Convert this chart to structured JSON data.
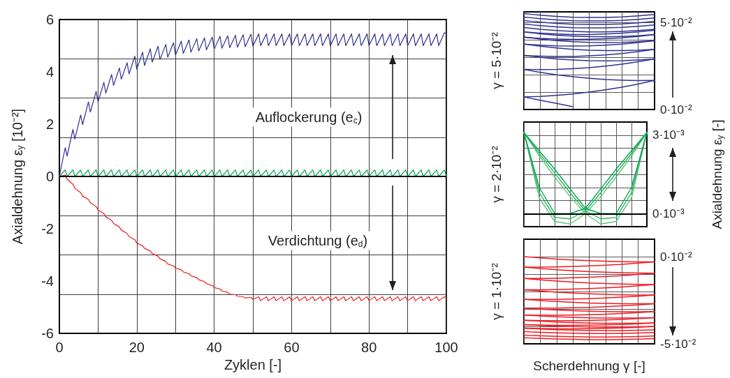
{
  "chart_data": [
    {
      "type": "line",
      "xlabel": "Zyklen [-]",
      "ylabel": "Axialdehnung ε$_{y}$ [10⁻²]",
      "x": [
        0,
        1.5,
        2,
        3.5,
        4,
        5.5,
        6,
        7.5,
        8,
        9.5,
        10,
        11.5,
        12,
        13.5,
        14,
        15.5,
        16,
        17.5,
        18,
        19.5,
        20,
        21.5,
        22,
        23.5,
        24,
        25.5,
        26,
        27.5,
        28,
        29.5,
        30,
        31.5,
        32,
        33.5,
        34,
        35.5,
        36,
        37.5,
        38,
        39.5,
        40,
        41.5,
        42,
        43.5,
        44,
        45.5,
        46,
        47.5,
        48,
        49.5,
        50,
        51.5,
        52,
        53.5,
        54,
        55.5,
        56,
        57.5,
        58,
        59.5,
        60,
        61.5,
        62,
        63.5,
        64,
        65.5,
        66,
        67.5,
        68,
        69.5,
        70,
        71.5,
        72,
        73.5,
        74,
        75.5,
        76,
        77.5,
        78,
        79.5,
        80,
        81.5,
        82,
        83.5,
        84,
        85.5,
        86,
        87.5,
        88,
        89.5,
        90,
        91.5,
        92,
        93.5,
        94,
        95.5,
        96,
        97.5,
        98,
        99.5,
        100
      ],
      "xlim": [
        0,
        100
      ],
      "xticks": [
        0,
        {
          "value": 10,
          "label": null
        },
        20,
        {
          "value": 30,
          "label": null
        },
        40,
        {
          "value": 50,
          "label": null
        },
        60,
        {
          "value": 70,
          "label": null
        },
        80,
        {
          "value": 90,
          "label": null
        },
        100
      ],
      "ylim": [
        -6,
        6
      ],
      "yticks": [
        -6,
        {
          "value": -4.5,
          "label": null
        },
        -4,
        {
          "value": -3,
          "label": null
        },
        -2,
        {
          "value": -1.5,
          "label": null
        },
        0,
        {
          "value": 1.5,
          "label": null
        },
        2,
        {
          "value": 3,
          "label": null
        },
        4,
        {
          "value": 4.5,
          "label": null
        },
        6
      ],
      "grid": true,
      "marker": "none",
      "line_style": "solid",
      "ref_lines": [
        {
          "axis": "y",
          "value": 0,
          "color": "#000000"
        }
      ],
      "annotations": [
        "Auflockerung (e$_{c}$)",
        "Verdichtung (e$_{d}$)"
      ],
      "series": [
        {
          "color": "#2e3192",
          "values": [
            0,
            1.1,
            0.78,
            1.8,
            1.43,
            2.35,
            1.98,
            2.85,
            2.46,
            3.25,
            2.85,
            3.6,
            3.19,
            3.9,
            3.48,
            4.15,
            3.72,
            4.35,
            3.92,
            4.6,
            4.1,
            4.75,
            4.24,
            4.88,
            4.37,
            4.98,
            4.47,
            5.05,
            4.56,
            5.12,
            4.64,
            5.18,
            4.7,
            5.22,
            4.75,
            5.27,
            4.8,
            5.3,
            4.84,
            5.33,
            4.87,
            5.36,
            4.9,
            5.38,
            4.92,
            5.4,
            4.94,
            5.42,
            4.96,
            5.44,
            4.98,
            5.45,
            5.0,
            5.45,
            5.0,
            5.45,
            5.0,
            5.45,
            5.0,
            5.45,
            5.0,
            5.45,
            5.0,
            5.45,
            5.0,
            5.45,
            5.0,
            5.45,
            5.0,
            5.45,
            5.0,
            5.45,
            5.0,
            5.45,
            5.0,
            5.45,
            5.0,
            5.45,
            5.0,
            5.45,
            5.0,
            5.45,
            5.0,
            5.45,
            5.0,
            5.45,
            5.0,
            5.45,
            5.0,
            5.45,
            5.0,
            5.45,
            5.0,
            5.45,
            5.0,
            5.45,
            5.0,
            5.45,
            5.0,
            5.5,
            5.45
          ]
        },
        {
          "color": "#00a651",
          "values": [
            0,
            0.25,
            0,
            0.25,
            0,
            0.25,
            0,
            0.25,
            0,
            0.25,
            0,
            0.25,
            0,
            0.25,
            0,
            0.25,
            0,
            0.25,
            0,
            0.25,
            0,
            0.25,
            0,
            0.25,
            0,
            0.25,
            0,
            0.25,
            0,
            0.25,
            0,
            0.25,
            0,
            0.25,
            0,
            0.25,
            0,
            0.25,
            0,
            0.25,
            0,
            0.25,
            0,
            0.25,
            0,
            0.25,
            0,
            0.25,
            0,
            0.25,
            0,
            0.25,
            0,
            0.25,
            0,
            0.25,
            0,
            0.25,
            0,
            0.25,
            0,
            0.25,
            0,
            0.25,
            0,
            0.25,
            0,
            0.25,
            0,
            0.25,
            0,
            0.25,
            0,
            0.25,
            0,
            0.25,
            0,
            0.25,
            0,
            0.25,
            0,
            0.25,
            0,
            0.25,
            0,
            0.25,
            0,
            0.25,
            0,
            0.25,
            0,
            0.25,
            0,
            0.25,
            0,
            0.25,
            0,
            0.25,
            0,
            0.25,
            0
          ]
        },
        {
          "color": "#ed1c24",
          "values": [
            0,
            0.05,
            -0.1,
            -0.3,
            -0.45,
            -0.62,
            -0.75,
            -0.88,
            -1.0,
            -1.15,
            -1.28,
            -1.42,
            -1.55,
            -1.68,
            -1.8,
            -1.93,
            -2.05,
            -2.18,
            -2.3,
            -2.42,
            -2.55,
            -2.65,
            -2.75,
            -2.85,
            -2.95,
            -3.05,
            -3.15,
            -3.25,
            -3.35,
            -3.42,
            -3.5,
            -3.57,
            -3.65,
            -3.72,
            -3.8,
            -3.87,
            -3.95,
            -4.02,
            -4.1,
            -4.17,
            -4.25,
            -4.3,
            -4.38,
            -4.43,
            -4.5,
            -4.52,
            -4.58,
            -4.6,
            -4.65,
            -4.62,
            -4.7,
            -4.6,
            -4.75,
            -4.6,
            -4.75,
            -4.6,
            -4.75,
            -4.6,
            -4.75,
            -4.6,
            -4.75,
            -4.6,
            -4.75,
            -4.6,
            -4.75,
            -4.6,
            -4.75,
            -4.6,
            -4.75,
            -4.6,
            -4.75,
            -4.6,
            -4.75,
            -4.6,
            -4.75,
            -4.6,
            -4.75,
            -4.6,
            -4.75,
            -4.6,
            -4.75,
            -4.6,
            -4.75,
            -4.6,
            -4.75,
            -4.6,
            -4.75,
            -4.6,
            -4.75,
            -4.6,
            -4.75,
            -4.6,
            -4.75,
            -4.6,
            -4.75,
            -4.6,
            -4.75,
            -4.6,
            -4.75,
            -4.6,
            -4.65
          ]
        }
      ]
    },
    {
      "type": "line",
      "title": "γ = 5·10⁻²",
      "categories": [
        null,
        null,
        null,
        null,
        null,
        null,
        null,
        null,
        null
      ],
      "ylim": [
        0,
        0.056
      ],
      "yticks": [
        {
          "value": 0,
          "label": "0·10⁻²"
        },
        {
          "value": 0.01,
          "label": null
        },
        {
          "value": 0.02,
          "label": null
        },
        {
          "value": 0.03,
          "label": null
        },
        {
          "value": 0.04,
          "label": null
        },
        {
          "value": 0.05,
          "label": "5·10⁻²"
        }
      ],
      "grid": true,
      "marker": "none",
      "line_style": "solid",
      "series": [
        {
          "color": "#2e3192",
          "values": [
            0.0072,
            0.0053,
            0.0035,
            0.0016,
            null,
            null,
            null,
            null,
            null
          ]
        },
        {
          "color": "#2e3192",
          "values": [
            0.0072,
            0.0075,
            0.0081,
            0.0089,
            0.01,
            0.0113,
            0.0128,
            0.0146,
            0.0167
          ]
        },
        {
          "color": "#2e3192",
          "values": [
            0.023,
            0.0213,
            0.0199,
            0.0188,
            0.0179,
            0.0172,
            0.0168,
            0.0166,
            0.0167
          ]
        },
        {
          "color": "#2e3192",
          "values": [
            0.023,
            0.0229,
            0.023,
            0.0234,
            0.024,
            0.0249,
            0.026,
            0.0274,
            0.029
          ]
        },
        {
          "color": "#2e3192",
          "values": [
            0.031,
            0.0299,
            0.029,
            0.0284,
            0.028,
            0.0279,
            0.028,
            0.0284,
            0.029
          ]
        },
        {
          "color": "#2e3192",
          "values": [
            0.031,
            0.0306,
            0.0304,
            0.0304,
            0.0308,
            0.0313,
            0.0321,
            0.0332,
            0.0345
          ]
        },
        {
          "color": "#2e3192",
          "values": [
            0.0375,
            0.0363,
            0.0353,
            0.0345,
            0.034,
            0.0338,
            0.0338,
            0.034,
            0.0345
          ]
        },
        {
          "color": "#2e3192",
          "values": [
            0.0375,
            0.0369,
            0.0365,
            0.0364,
            0.0365,
            0.0369,
            0.0375,
            0.0384,
            0.0395
          ]
        },
        {
          "color": "#2e3192",
          "values": [
            0.0415,
            0.0404,
            0.0395,
            0.0389,
            0.0385,
            0.0384,
            0.0385,
            0.0389,
            0.0395
          ]
        },
        {
          "color": "#2e3192",
          "values": [
            0.0415,
            0.0408,
            0.0404,
            0.0402,
            0.0403,
            0.0406,
            0.0411,
            0.0419,
            0.043
          ]
        },
        {
          "color": "#2e3192",
          "values": [
            0.0445,
            0.0434,
            0.0426,
            0.0421,
            0.0418,
            0.0417,
            0.0419,
            0.0423,
            0.043
          ]
        },
        {
          "color": "#2e3192",
          "values": [
            0.0445,
            0.0438,
            0.0433,
            0.043,
            0.043,
            0.0433,
            0.0438,
            0.0445,
            0.0455
          ]
        },
        {
          "color": "#2e3192",
          "values": [
            0.047,
            0.046,
            0.0453,
            0.0448,
            0.0445,
            0.0445,
            0.0448,
            0.0453,
            0.046
          ]
        },
        {
          "color": "#2e3192",
          "values": [
            0.049,
            0.0481,
            0.0474,
            0.0469,
            0.0468,
            0.0468,
            0.0471,
            0.0477,
            0.0485
          ]
        },
        {
          "color": "#2e3192",
          "values": [
            0.051,
            0.0501,
            0.0494,
            0.0489,
            0.0488,
            0.0488,
            0.0491,
            0.0497,
            0.0505
          ]
        },
        {
          "color": "#2e3192",
          "values": [
            0.053,
            0.0521,
            0.0514,
            0.0509,
            0.0508,
            0.0508,
            0.0511,
            0.0517,
            0.0525
          ]
        },
        {
          "color": "#2e3192",
          "values": [
            0.055,
            0.0541,
            0.0534,
            0.0529,
            0.0528,
            0.0528,
            0.0531,
            0.0537,
            0.0545
          ]
        }
      ]
    },
    {
      "type": "line",
      "title": "γ = 2·10⁻²",
      "ylabel": "Axialdehnung ε$_{y}$ [-]",
      "categories": [
        null,
        null,
        null,
        null,
        null,
        null,
        null,
        null,
        null
      ],
      "ylim": [
        -0.0005,
        0.0035
      ],
      "yticks": [
        {
          "value": 0,
          "label": "0·10⁻³"
        },
        {
          "value": 0.0005,
          "label": null
        },
        {
          "value": 0.001,
          "label": null
        },
        {
          "value": 0.0015,
          "label": null
        },
        {
          "value": 0.002,
          "label": null
        },
        {
          "value": 0.0025,
          "label": null
        },
        {
          "value": 0.003,
          "label": "3·10⁻³"
        }
      ],
      "grid": true,
      "marker": "none",
      "line_style": "solid",
      "ref_lines": [
        {
          "axis": "y",
          "value": 0,
          "color": "#000000"
        }
      ],
      "series": [
        {
          "color": "#5cc57c",
          "values": [
            0.0031,
            0.0022,
            0.0014,
            0.00065,
            0,
            -0.0004,
            -0.0003,
            0.0006,
            0.0031
          ]
        },
        {
          "color": "#5cc57c",
          "values": [
            0.0031,
            0.0006,
            -0.0003,
            -0.0004,
            0,
            0.00065,
            0.0014,
            0.0022,
            0.0031
          ]
        },
        {
          "color": "#2bb25e",
          "values": [
            0.0031,
            0.0023,
            0.00155,
            0.0008,
            0.0001,
            -0.0002,
            -0.00015,
            0.0008,
            0.0031
          ]
        },
        {
          "color": "#2bb25e",
          "values": [
            0.0031,
            0.0008,
            -0.00015,
            -0.0002,
            0.0001,
            0.0008,
            0.00155,
            0.0023,
            0.0031
          ]
        },
        {
          "color": "#00a651",
          "values": [
            0.0031,
            0.0024,
            0.0017,
            0.00095,
            0.0002,
            0,
            0,
            0.001,
            0.0031
          ]
        },
        {
          "color": "#00a651",
          "values": [
            0.0031,
            0.001,
            0,
            0,
            0.0002,
            0.00095,
            0.0017,
            0.0024,
            0.0031
          ]
        }
      ]
    },
    {
      "type": "line",
      "title": "γ = 1·10⁻²",
      "xlabel": "Scherdehnung γ [-]",
      "categories": [
        null,
        null,
        null,
        null,
        null,
        null,
        null,
        null,
        null
      ],
      "ylim": [
        -0.05,
        0.01
      ],
      "yticks": [
        {
          "value": -0.05,
          "label": "-5·10⁻²"
        },
        {
          "value": -0.04,
          "label": null
        },
        {
          "value": -0.03,
          "label": null
        },
        {
          "value": -0.02,
          "label": null
        },
        {
          "value": -0.01,
          "label": null
        },
        {
          "value": 0,
          "label": "0·10⁻²"
        }
      ],
      "grid": true,
      "marker": "none",
      "line_style": "solid",
      "series": [
        {
          "color": "#ed1c24",
          "values": [
            0,
            -0.0007,
            -0.0014,
            -0.0019,
            -0.0023,
            -0.0026,
            -0.0029,
            -0.003,
            -0.003
          ]
        },
        {
          "color": "#ed1c24",
          "values": [
            -0.006,
            -0.006,
            -0.0059,
            -0.0056,
            -0.0053,
            -0.0049,
            -0.0044,
            -0.0037,
            -0.003
          ]
        },
        {
          "color": "#ed1c24",
          "values": [
            -0.006,
            -0.0068,
            -0.0075,
            -0.0081,
            -0.0086,
            -0.0089,
            -0.0092,
            -0.0094,
            -0.0095
          ]
        },
        {
          "color": "#ed1c24",
          "values": [
            -0.0125,
            -0.0125,
            -0.0124,
            -0.0121,
            -0.0118,
            -0.0114,
            -0.0109,
            -0.0102,
            -0.0095
          ]
        },
        {
          "color": "#ed1c24",
          "values": [
            -0.0125,
            -0.0133,
            -0.014,
            -0.0146,
            -0.0151,
            -0.0154,
            -0.0157,
            -0.0159,
            -0.016
          ]
        },
        {
          "color": "#ed1c24",
          "values": [
            -0.019,
            -0.019,
            -0.0189,
            -0.0186,
            -0.0183,
            -0.0179,
            -0.0174,
            -0.0167,
            -0.016
          ]
        },
        {
          "color": "#ed1c24",
          "values": [
            -0.019,
            -0.0197,
            -0.0204,
            -0.0209,
            -0.0213,
            -0.0216,
            -0.0219,
            -0.022,
            -0.022
          ]
        },
        {
          "color": "#ed1c24",
          "values": [
            -0.0245,
            -0.0245,
            -0.0245,
            -0.0243,
            -0.0241,
            -0.0237,
            -0.0232,
            -0.0227,
            -0.022
          ]
        },
        {
          "color": "#ed1c24",
          "values": [
            -0.0245,
            -0.0252,
            -0.0257,
            -0.0262,
            -0.0266,
            -0.0268,
            -0.027,
            -0.027,
            -0.027
          ]
        },
        {
          "color": "#ed1c24",
          "values": [
            -0.0295,
            -0.0295,
            -0.0295,
            -0.0293,
            -0.0291,
            -0.0287,
            -0.0282,
            -0.0277,
            -0.027
          ]
        },
        {
          "color": "#ed1c24",
          "values": [
            -0.0295,
            -0.0301,
            -0.0306,
            -0.031,
            -0.0313,
            -0.0315,
            -0.0316,
            -0.0316,
            -0.0315
          ]
        },
        {
          "color": "#ed1c24",
          "values": [
            -0.0335,
            -0.0336,
            -0.0336,
            -0.0335,
            -0.0333,
            -0.033,
            -0.0326,
            -0.0321,
            -0.0315
          ]
        },
        {
          "color": "#ed1c24",
          "values": [
            -0.0335,
            -0.034,
            -0.0345,
            -0.0348,
            -0.0351,
            -0.0352,
            -0.0352,
            -0.0352,
            -0.035
          ]
        },
        {
          "color": "#ed1c24",
          "values": [
            -0.0365,
            -0.0367,
            -0.0367,
            -0.0367,
            -0.0366,
            -0.0363,
            -0.036,
            -0.0355,
            -0.035
          ]
        },
        {
          "color": "#ed1c24",
          "values": [
            -0.0365,
            -0.037,
            -0.0375,
            -0.0378,
            -0.0381,
            -0.0382,
            -0.0382,
            -0.0382,
            -0.038
          ]
        },
        {
          "color": "#ed1c24",
          "values": [
            -0.039,
            -0.0392,
            -0.0394,
            -0.0394,
            -0.0393,
            -0.0391,
            -0.0389,
            -0.0385,
            -0.038
          ]
        },
        {
          "color": "#ed1c24",
          "values": [
            -0.039,
            -0.0395,
            -0.0399,
            -0.0401,
            -0.0403,
            -0.0404,
            -0.0404,
            -0.0402,
            -0.04
          ]
        },
        {
          "color": "#ed1c24",
          "values": [
            -0.041,
            -0.0412,
            -0.0414,
            -0.0414,
            -0.0413,
            -0.0411,
            -0.0409,
            -0.0405,
            -0.04
          ]
        },
        {
          "color": "#ed1c24",
          "values": [
            -0.041,
            -0.0415,
            -0.0419,
            -0.0421,
            -0.0423,
            -0.0424,
            -0.0424,
            -0.0422,
            -0.042
          ]
        },
        {
          "color": "#ed1c24",
          "values": [
            -0.043,
            -0.0434,
            -0.0437,
            -0.0439,
            -0.0441,
            -0.0441,
            -0.044,
            -0.0438,
            -0.0435
          ]
        },
        {
          "color": "#ed1c24",
          "values": [
            -0.045,
            -0.0454,
            -0.0457,
            -0.0459,
            -0.0461,
            -0.0461,
            -0.046,
            -0.0458,
            -0.0455
          ]
        },
        {
          "color": "#ed1c24",
          "values": [
            -0.0465,
            -0.0469,
            -0.0472,
            -0.0474,
            -0.0476,
            -0.0476,
            -0.0475,
            -0.0473,
            -0.047
          ]
        }
      ]
    }
  ]
}
